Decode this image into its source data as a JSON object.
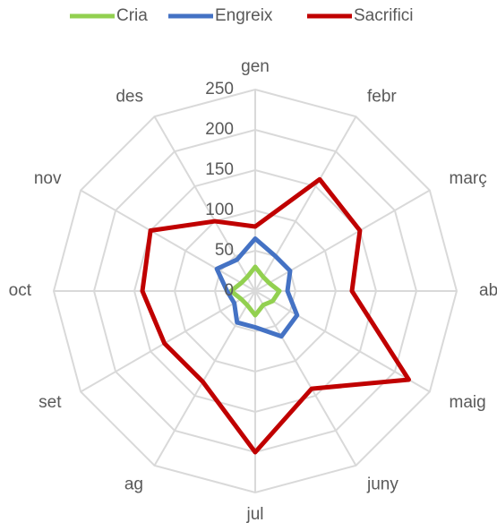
{
  "chart_data": {
    "type": "radar",
    "categories": [
      "gen",
      "febr",
      "març",
      "abr",
      "maig",
      "juny",
      "jul",
      "ag",
      "set",
      "oct",
      "nov",
      "des"
    ],
    "series": [
      {
        "name": "Cria",
        "color": "#92d050",
        "values": [
          30,
          20,
          20,
          30,
          25,
          20,
          30,
          20,
          20,
          30,
          20,
          20
        ]
      },
      {
        "name": "Engreix",
        "color": "#4472c4",
        "values": [
          65,
          50,
          50,
          40,
          60,
          65,
          45,
          45,
          30,
          35,
          55,
          45
        ]
      },
      {
        "name": "Sacrifici",
        "color": "#c00000",
        "values": [
          80,
          160,
          150,
          120,
          220,
          140,
          200,
          130,
          130,
          140,
          150,
          100
        ]
      }
    ],
    "ylim": [
      0,
      250
    ],
    "yticks": [
      0,
      50,
      100,
      150,
      200,
      250
    ],
    "grid": true,
    "legend": "top"
  }
}
